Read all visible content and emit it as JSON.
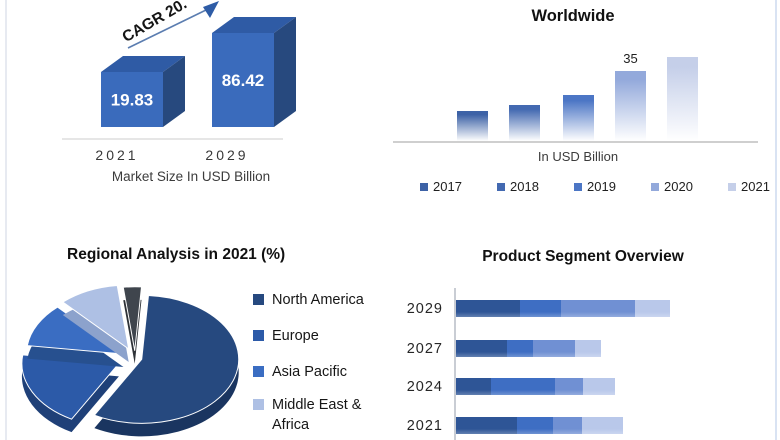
{
  "frame": {
    "background": "#ffffff",
    "left_border_color": "#e7eaf1",
    "right_border_color": "#d9e3f3"
  },
  "chart_data": [
    {
      "id": "market-size",
      "type": "bar",
      "style": "3d-column",
      "title": "Market Size In USD Billion",
      "annotation": "CAGR 20.",
      "categories": [
        "2021",
        "2029"
      ],
      "values": [
        19.83,
        86.42
      ],
      "value_labels": [
        "19.83",
        "86.42"
      ],
      "bar_front_color": "#3a6bbc",
      "bar_top_color": "#2f5ba5",
      "bar_side_color": "#27497e",
      "arrow_color": "#2e5ca6",
      "value_label_color": "#ffffff"
    },
    {
      "id": "worldwide",
      "type": "bar",
      "title": "Worldwide",
      "xlabel": "In USD Billion",
      "categories": [
        "2017",
        "2018",
        "2019",
        "2020",
        "2021"
      ],
      "values": [
        15,
        18,
        23,
        35,
        42
      ],
      "data_labels": [
        "",
        "",
        "",
        "35",
        ""
      ],
      "colors": [
        "#3d62a6",
        "#4369b1",
        "#4c76c5",
        "#93a9db",
        "#c5cfe9"
      ],
      "legend_position": "bottom",
      "gradient_fade": true,
      "ylim": [
        0,
        45
      ]
    },
    {
      "id": "regional",
      "type": "pie",
      "title": "Regional Analysis in 2021 (%)",
      "labels": [
        "North America",
        "Europe",
        "Asia Pacific",
        "Middle East & Africa",
        ""
      ],
      "values": [
        57,
        19,
        11,
        10,
        3
      ],
      "colors": [
        "#26497f",
        "#2c5aa8",
        "#3a6dc2",
        "#aec0e4",
        "#3f454d"
      ],
      "side_colors": [
        "#1a3560",
        "#1f4078",
        "#27508f",
        "#8ca2cc",
        "#2e3237"
      ],
      "legend_position": "right"
    },
    {
      "id": "product-segment",
      "type": "bar",
      "orientation": "horizontal",
      "stacked": true,
      "title": "Product Segment Overview",
      "categories": [
        "2029",
        "2027",
        "2024",
        "2021"
      ],
      "series": [
        {
          "name": "",
          "values": [
            64,
            51,
            35,
            61
          ]
        },
        {
          "name": "",
          "values": [
            41,
            26,
            64,
            36
          ]
        },
        {
          "name": "",
          "values": [
            74,
            42,
            28,
            29
          ]
        },
        {
          "name": "",
          "values": [
            35,
            26,
            32,
            41
          ]
        }
      ],
      "colors": [
        "#2e5596",
        "#3e6ec3",
        "#7090d3",
        "#b9c8ea"
      ]
    }
  ]
}
